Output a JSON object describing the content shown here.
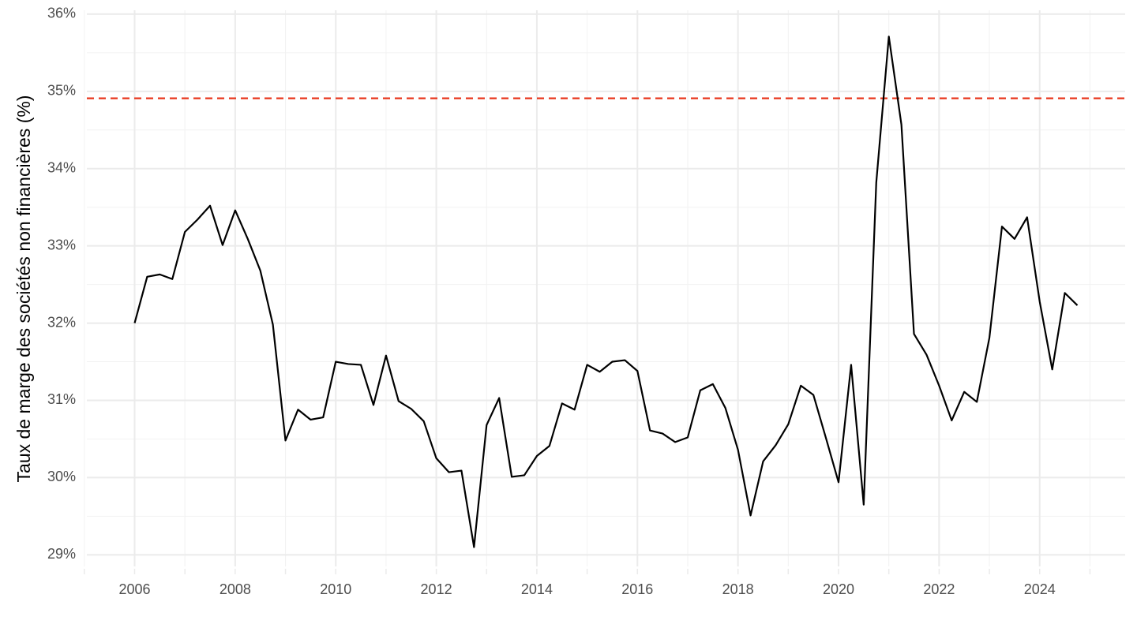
{
  "chart_data": {
    "type": "line",
    "y_label": "Taux de marge des sociétés non financières (%)",
    "x": [
      2006,
      2006.25,
      2006.5,
      2006.75,
      2007,
      2007.25,
      2007.5,
      2007.75,
      2008,
      2008.25,
      2008.5,
      2008.75,
      2009,
      2009.25,
      2009.5,
      2009.75,
      2010,
      2010.25,
      2010.5,
      2010.75,
      2011,
      2011.25,
      2011.5,
      2011.75,
      2012,
      2012.25,
      2012.5,
      2012.75,
      2013,
      2013.25,
      2013.5,
      2013.75,
      2014,
      2014.25,
      2014.5,
      2014.75,
      2015,
      2015.25,
      2015.5,
      2015.75,
      2016,
      2016.25,
      2016.5,
      2016.75,
      2017,
      2017.25,
      2017.5,
      2017.75,
      2018,
      2018.25,
      2018.5,
      2018.75,
      2019,
      2019.25,
      2019.5,
      2019.75,
      2020,
      2020.25,
      2020.5,
      2020.75,
      2021,
      2021.25,
      2021.5,
      2021.75,
      2022,
      2022.25,
      2022.5,
      2022.75,
      2023,
      2023.25,
      2023.5,
      2023.75,
      2024,
      2024.25,
      2024.5,
      2024.75
    ],
    "series": [
      {
        "color": "#000000",
        "values": [
          32.0,
          32.6,
          32.63,
          32.57,
          33.18,
          33.34,
          33.52,
          33.01,
          33.46,
          33.09,
          32.68,
          31.98,
          30.48,
          30.88,
          30.75,
          30.78,
          31.5,
          31.47,
          31.46,
          30.94,
          31.58,
          30.99,
          30.89,
          30.73,
          30.25,
          30.07,
          30.09,
          29.1,
          30.68,
          31.03,
          30.01,
          30.03,
          30.28,
          30.41,
          30.96,
          30.88,
          31.46,
          31.37,
          31.5,
          31.52,
          31.38,
          30.61,
          30.57,
          30.46,
          30.52,
          31.13,
          31.21,
          30.9,
          30.36,
          29.51,
          30.21,
          30.42,
          30.69,
          31.19,
          31.07,
          30.51,
          29.94,
          31.46,
          29.65,
          33.82,
          35.71,
          34.57,
          31.86,
          31.59,
          31.19,
          30.74,
          31.11,
          30.98,
          31.81,
          33.25,
          33.09,
          33.37,
          32.28,
          31.4,
          32.39,
          32.23
        ]
      }
    ],
    "hline": {
      "value": 34.91,
      "color": "#e8361c",
      "dashed": true
    },
    "xlim": [
      2005.05,
      2025.7
    ],
    "ylim": [
      28.85,
      36.05
    ],
    "xticks": [
      2006,
      2008,
      2010,
      2012,
      2014,
      2016,
      2018,
      2020,
      2022,
      2024
    ],
    "x_minor_ticks": [
      2005,
      2007,
      2009,
      2011,
      2013,
      2015,
      2017,
      2019,
      2021,
      2023,
      2025
    ],
    "yticks": [
      {
        "value": 29,
        "label": "29%"
      },
      {
        "value": 30,
        "label": "30%"
      },
      {
        "value": 31,
        "label": "31%"
      },
      {
        "value": 32,
        "label": "32%"
      },
      {
        "value": 33,
        "label": "33%"
      },
      {
        "value": 34,
        "label": "34%"
      },
      {
        "value": 35,
        "label": "35%"
      },
      {
        "value": 36,
        "label": "36%"
      }
    ],
    "y_minor_ticks": [
      29.5,
      30.5,
      31.5,
      32.5,
      33.5,
      34.5,
      35.5
    ],
    "grid": true
  }
}
